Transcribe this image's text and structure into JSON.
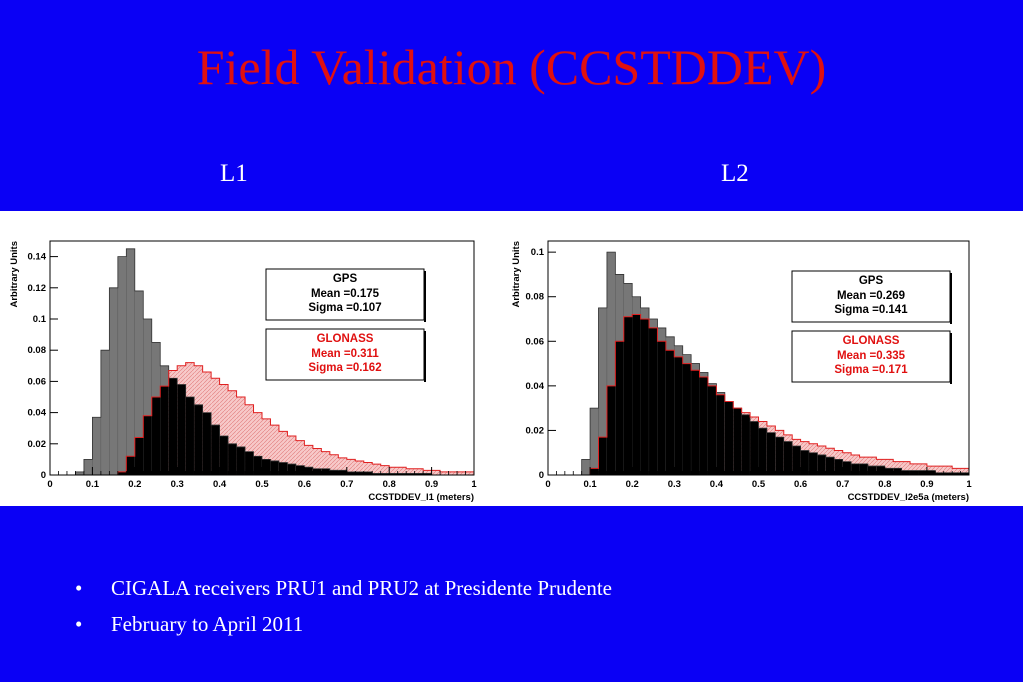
{
  "slide": {
    "title": "Field Validation (CCSTDDEV)",
    "labels": [
      "L1",
      "L2"
    ],
    "bullets": [
      "CIGALA receivers PRU1 and PRU2 at Presidente Prudente",
      "February to April 2011"
    ]
  },
  "colors": {
    "background": "#0a00f5",
    "title": "#e01010",
    "gps_fill": "#777777",
    "glonass_fill": "#f7c8c8",
    "glonass_line": "#e02020",
    "overlap_fill": "#000000"
  },
  "chart_data": [
    {
      "type": "histogram",
      "xlabel": "CCSTDDEV_l1 (meters)",
      "ylabel": "Arbitrary Units",
      "xlim": [
        0,
        1
      ],
      "ylim": [
        0,
        0.15
      ],
      "xticks": [
        "0",
        "0.1",
        "0.2",
        "0.3",
        "0.4",
        "0.5",
        "0.6",
        "0.7",
        "0.8",
        "0.9",
        "1"
      ],
      "xtick_values": [
        0,
        0.1,
        0.2,
        0.3,
        0.4,
        0.5,
        0.6,
        0.7,
        0.8,
        0.9,
        1
      ],
      "yticks": [
        "0",
        "0.02",
        "0.04",
        "0.06",
        "0.08",
        "0.1",
        "0.12",
        "0.14"
      ],
      "ytick_values": [
        0,
        0.02,
        0.04,
        0.06,
        0.08,
        0.1,
        0.12,
        0.14
      ],
      "bin_width": 0.02,
      "series": [
        {
          "name": "GPS",
          "stats": [
            "Mean =0.175",
            "Sigma =0.107"
          ],
          "values": [
            0,
            0,
            0,
            0.002,
            0.01,
            0.037,
            0.08,
            0.12,
            0.14,
            0.145,
            0.118,
            0.1,
            0.085,
            0.07,
            0.062,
            0.058,
            0.05,
            0.045,
            0.04,
            0.032,
            0.025,
            0.02,
            0.018,
            0.015,
            0.012,
            0.01,
            0.009,
            0.008,
            0.007,
            0.006,
            0.005,
            0.004,
            0.004,
            0.003,
            0.003,
            0.002,
            0.002,
            0.002,
            0.001,
            0.001,
            0.001,
            0.001,
            0.001,
            0.001,
            0.001,
            0,
            0,
            0,
            0,
            0
          ]
        },
        {
          "name": "GLONASS",
          "stats": [
            "Mean =0.311",
            "Sigma =0.162"
          ],
          "values": [
            0,
            0,
            0,
            0,
            0,
            0,
            0,
            0,
            0.002,
            0.012,
            0.024,
            0.038,
            0.05,
            0.057,
            0.067,
            0.07,
            0.072,
            0.07,
            0.066,
            0.062,
            0.058,
            0.054,
            0.05,
            0.045,
            0.04,
            0.036,
            0.032,
            0.028,
            0.025,
            0.022,
            0.019,
            0.017,
            0.015,
            0.013,
            0.011,
            0.01,
            0.009,
            0.008,
            0.007,
            0.006,
            0.005,
            0.005,
            0.004,
            0.004,
            0.003,
            0.003,
            0.002,
            0.002,
            0.002,
            0.002
          ]
        }
      ]
    },
    {
      "type": "histogram",
      "xlabel": "CCSTDDEV_l2e5a (meters)",
      "ylabel": "Arbitrary Units",
      "xlim": [
        0,
        1
      ],
      "ylim": [
        0,
        0.105
      ],
      "xticks": [
        "0",
        "0.1",
        "0.2",
        "0.3",
        "0.4",
        "0.5",
        "0.6",
        "0.7",
        "0.8",
        "0.9",
        "1"
      ],
      "xtick_values": [
        0,
        0.1,
        0.2,
        0.3,
        0.4,
        0.5,
        0.6,
        0.7,
        0.8,
        0.9,
        1
      ],
      "yticks": [
        "0",
        "0.02",
        "0.04",
        "0.06",
        "0.08",
        "0.1"
      ],
      "ytick_values": [
        0,
        0.02,
        0.04,
        0.06,
        0.08,
        0.1
      ],
      "bin_width": 0.02,
      "series": [
        {
          "name": "GPS",
          "stats": [
            "Mean =0.269",
            "Sigma =0.141"
          ],
          "values": [
            0,
            0,
            0,
            0,
            0.007,
            0.03,
            0.075,
            0.1,
            0.09,
            0.086,
            0.08,
            0.075,
            0.07,
            0.066,
            0.062,
            0.058,
            0.054,
            0.05,
            0.046,
            0.041,
            0.037,
            0.033,
            0.03,
            0.027,
            0.024,
            0.021,
            0.019,
            0.017,
            0.015,
            0.013,
            0.011,
            0.01,
            0.009,
            0.008,
            0.007,
            0.006,
            0.005,
            0.005,
            0.004,
            0.004,
            0.003,
            0.003,
            0.002,
            0.002,
            0.002,
            0.002,
            0.001,
            0.001,
            0.001,
            0.001
          ]
        },
        {
          "name": "GLONASS",
          "stats": [
            "Mean =0.335",
            "Sigma =0.171"
          ],
          "values": [
            0,
            0,
            0,
            0,
            0,
            0.003,
            0.017,
            0.04,
            0.06,
            0.071,
            0.072,
            0.07,
            0.066,
            0.06,
            0.056,
            0.053,
            0.05,
            0.047,
            0.044,
            0.04,
            0.036,
            0.033,
            0.03,
            0.028,
            0.026,
            0.024,
            0.022,
            0.02,
            0.018,
            0.016,
            0.015,
            0.014,
            0.013,
            0.012,
            0.011,
            0.01,
            0.009,
            0.008,
            0.008,
            0.007,
            0.007,
            0.006,
            0.006,
            0.005,
            0.005,
            0.004,
            0.004,
            0.004,
            0.003,
            0.003
          ]
        }
      ]
    }
  ]
}
